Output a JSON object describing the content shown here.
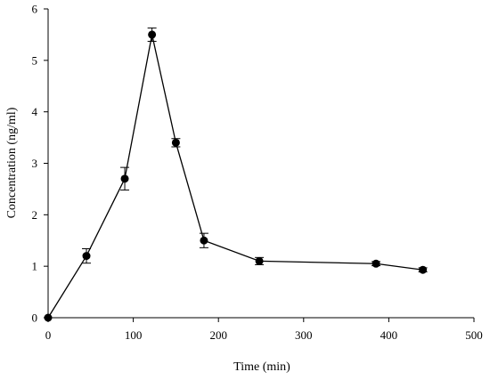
{
  "chart_data": {
    "type": "line",
    "xlabel": "Time (min)",
    "ylabel": "Concentration (ng/ml)",
    "xlim": [
      0,
      500
    ],
    "ylim": [
      0,
      6
    ],
    "xticks": [
      0,
      100,
      200,
      300,
      400,
      500
    ],
    "yticks": [
      0,
      1,
      2,
      3,
      4,
      5,
      6
    ],
    "grid": false,
    "series": [
      {
        "x": [
          0,
          45,
          90,
          122,
          150,
          183,
          248,
          385,
          440
        ],
        "y": [
          0.0,
          1.2,
          2.7,
          5.5,
          3.4,
          1.5,
          1.1,
          1.05,
          0.93
        ],
        "err": [
          0.0,
          0.14,
          0.22,
          0.13,
          0.08,
          0.14,
          0.07,
          0.04,
          0.04
        ]
      }
    ]
  },
  "colors": {
    "series": "#000000",
    "axis": "#000000",
    "background": "#ffffff"
  }
}
